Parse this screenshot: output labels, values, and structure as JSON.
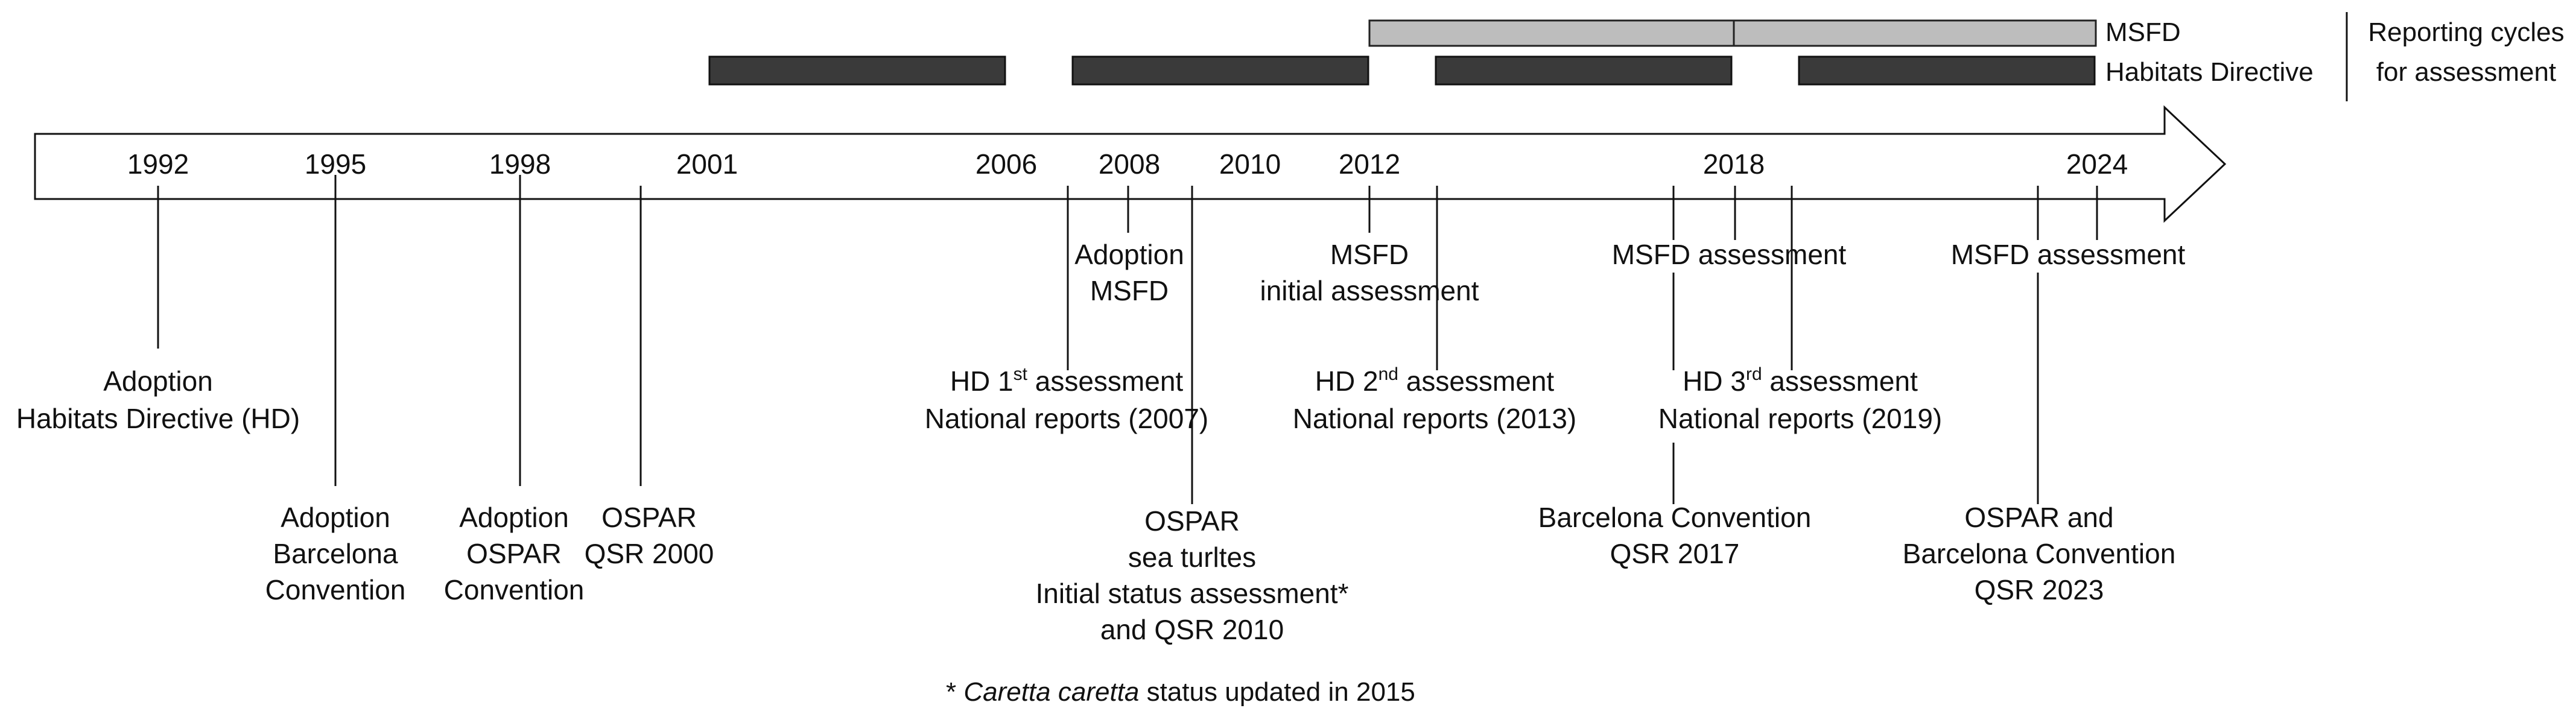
{
  "reporting": {
    "header_line1": "Reporting cycles",
    "header_line2": "for assessment",
    "msfd_label": "MSFD",
    "hd_label": "Habitats Directive"
  },
  "years": [
    "1992",
    "1995",
    "1998",
    "2001",
    "2006",
    "2008",
    "2010",
    "2012",
    "2018",
    "2024"
  ],
  "events": {
    "hd_adoption": {
      "line1": "Adoption",
      "line2": "Habitats Directive (HD)"
    },
    "barcelona_adoption": {
      "line1": "Adoption",
      "line2": "Barcelona",
      "line3": "Convention"
    },
    "ospar_adoption": {
      "line1": "Adoption",
      "line2": "OSPAR",
      "line3": "Convention"
    },
    "ospar_qsr2000": {
      "line1": "OSPAR",
      "line2": "QSR 2000"
    },
    "msfd_adoption": {
      "line1": "Adoption",
      "line2": "MSFD"
    },
    "hd1": {
      "pre": "HD 1",
      "sup": "st",
      "post": " assessment",
      "line2": "National reports (2007)"
    },
    "ospar_turtles": {
      "line1": "OSPAR",
      "line2": "sea turltes",
      "line3": "Initial status assessment*",
      "line4": "and QSR 2010"
    },
    "msfd_initial": {
      "line1": "MSFD",
      "line2": "initial assessment"
    },
    "hd2": {
      "pre": "HD 2",
      "sup": "nd",
      "post": " assessment",
      "line2": "National reports (2013)"
    },
    "msfd_assess_2018": {
      "line1": "MSFD assessment"
    },
    "hd3": {
      "pre": "HD 3",
      "sup": "rd",
      "post": " assessment",
      "line2": "National reports (2019)"
    },
    "barcelona_qsr2017": {
      "line1": "Barcelona Convention",
      "line2": "QSR 2017"
    },
    "msfd_assess_2024": {
      "line1": "MSFD assessment"
    },
    "ospar_barcelona_2023": {
      "line1": "OSPAR and",
      "line2": "Barcelona Convention",
      "line3": "QSR 2023"
    }
  },
  "footnote": {
    "star": "* ",
    "species": "Caretta caretta",
    "rest": " status updated in 2015"
  },
  "colors": {
    "msfd_bar": "#bdbdbd",
    "hd_bar": "#3a3a3a",
    "line": "#111111",
    "arrow_fill": "#ffffff"
  }
}
